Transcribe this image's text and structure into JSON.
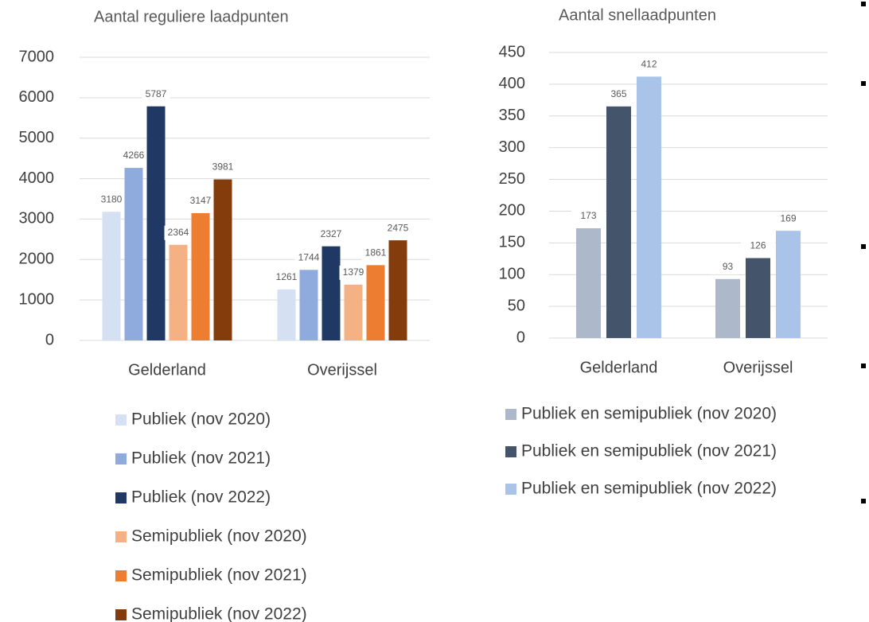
{
  "chart_data": [
    {
      "type": "bar",
      "title": "Aantal reguliere laadpunten",
      "categories": [
        "Gelderland",
        "Overijssel"
      ],
      "series": [
        {
          "name": "Publiek (nov 2020)",
          "color": "#d6e0f3",
          "values": [
            3180,
            1261
          ]
        },
        {
          "name": "Publiek (nov 2021)",
          "color": "#8faadc",
          "values": [
            4266,
            1744
          ]
        },
        {
          "name": "Publiek (nov 2022)",
          "color": "#1f3864",
          "values": [
            5787,
            2327
          ]
        },
        {
          "name": "Semipubliek (nov 2020)",
          "color": "#f4b183",
          "values": [
            2364,
            1379
          ]
        },
        {
          "name": "Semipubliek (nov 2021)",
          "color": "#ed7d31",
          "values": [
            3147,
            1861
          ]
        },
        {
          "name": "Semipubliek (nov 2022)",
          "color": "#843c0c",
          "values": [
            3981,
            2475
          ]
        }
      ],
      "ylim": [
        0,
        7000
      ],
      "yticks": [
        0,
        1000,
        2000,
        3000,
        4000,
        5000,
        6000,
        7000
      ],
      "grid": true
    },
    {
      "type": "bar",
      "title": "Aantal snellaadpunten",
      "categories": [
        "Gelderland",
        "Overijssel"
      ],
      "series": [
        {
          "name": "Publiek en semipubliek (nov 2020)",
          "color": "#adb9ca",
          "values": [
            173,
            93
          ]
        },
        {
          "name": "Publiek en semipubliek (nov 2021)",
          "color": "#44546a",
          "values": [
            365,
            126
          ]
        },
        {
          "name": "Publiek en semipubliek (nov 2022)",
          "color": "#a9c4e8",
          "values": [
            412,
            169
          ]
        }
      ],
      "ylim": [
        0,
        450
      ],
      "yticks": [
        0,
        50,
        100,
        150,
        200,
        250,
        300,
        350,
        400,
        450
      ],
      "grid": true
    }
  ]
}
